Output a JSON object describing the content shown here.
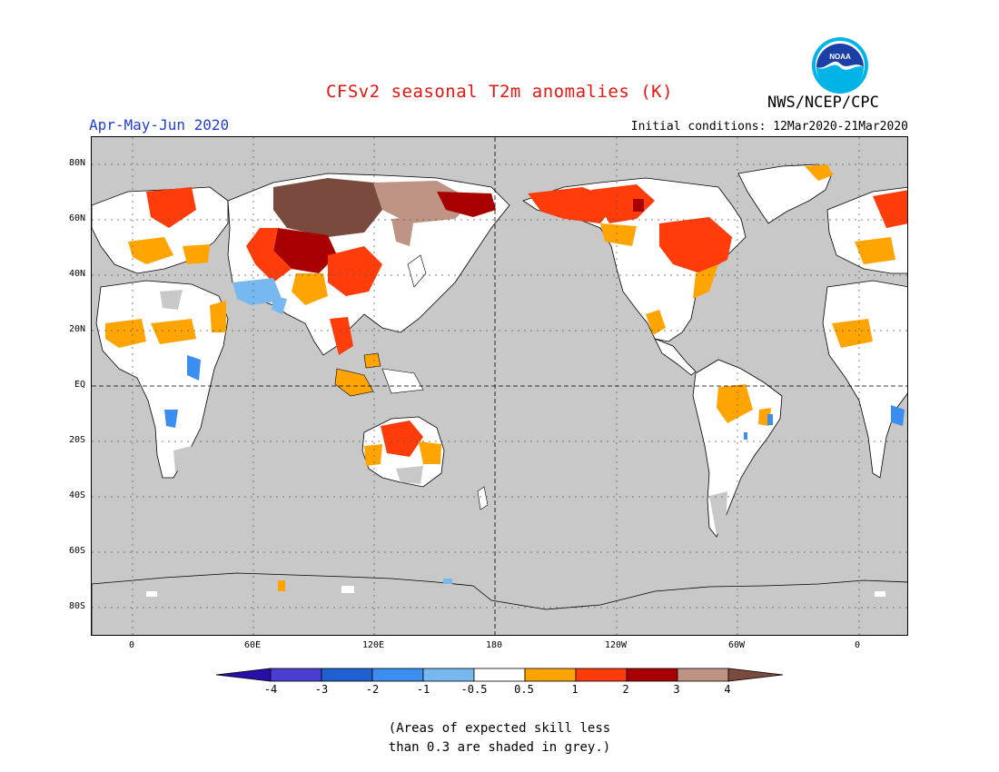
{
  "title": "CFSv2 seasonal T2m anomalies (K)",
  "agency": "NWS/NCEP/CPC",
  "logo_text": "NOAA",
  "period": "Apr-May-Jun 2020",
  "initial_conditions": "Initial conditions: 12Mar2020-21Mar2020",
  "lat_labels": [
    "80N",
    "60N",
    "40N",
    "20N",
    "EQ",
    "20S",
    "40S",
    "60S",
    "80S"
  ],
  "lon_labels": [
    "0",
    "60E",
    "120E",
    "180",
    "120W",
    "60W",
    "0"
  ],
  "colorbar": {
    "labels": [
      "-4",
      "-3",
      "-2",
      "-1",
      "-0.5",
      "0.5",
      "1",
      "2",
      "3",
      "4"
    ],
    "colors": [
      "#2a0ea8",
      "#4a3ed0",
      "#2060d0",
      "#3b8ef0",
      "#78b8f0",
      "#ffffff",
      "#ffa400",
      "#ff3c0a",
      "#a80000",
      "#c09484",
      "#7a4a3e"
    ]
  },
  "note": {
    "line1": "(Areas of expected skill less",
    "line2": "than 0.3 are shaded in grey.)"
  },
  "colors": {
    "title": "#e8140f",
    "period": "#1f3fd8",
    "skill_grey": "#c8c8c8"
  }
}
